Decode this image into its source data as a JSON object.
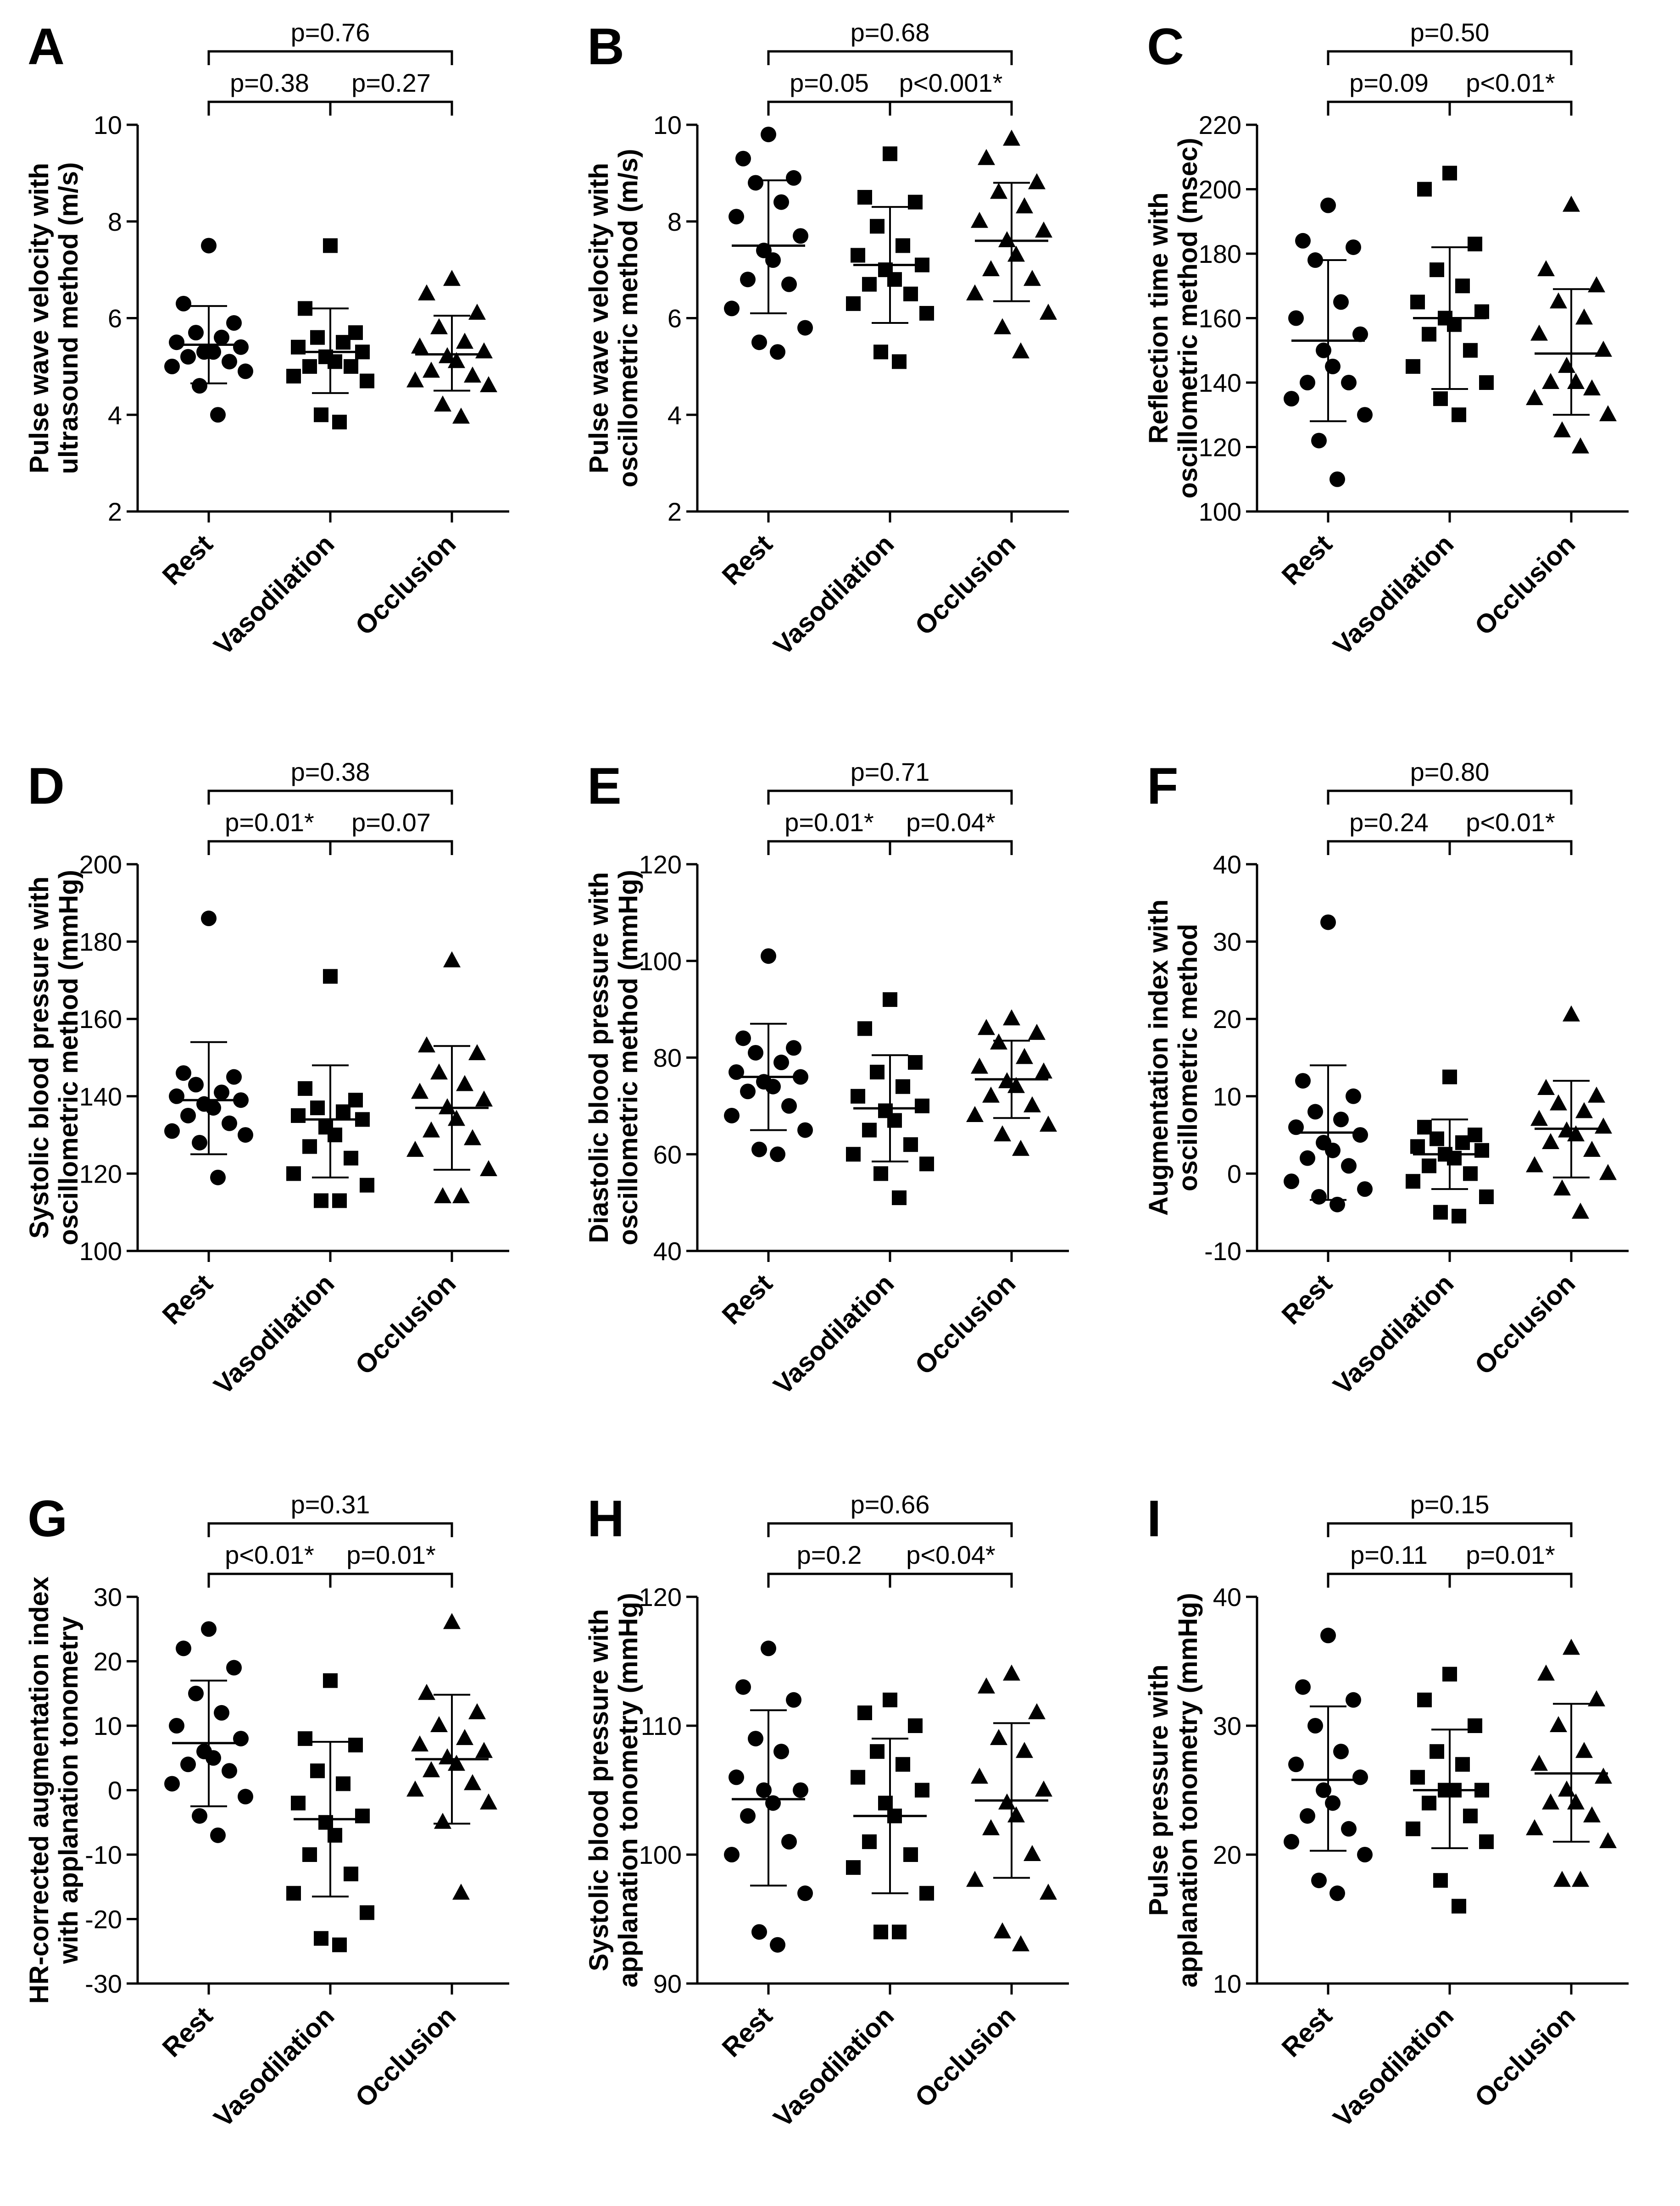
{
  "chart_data": [
    {
      "panel": "A",
      "type": "scatter",
      "ylabel_lines": [
        "Pulse wave velocity with",
        "ultrasound method (m/s)"
      ],
      "categories": [
        "Rest",
        "Vasodilation",
        "Occlusion"
      ],
      "ylim": [
        2,
        10
      ],
      "yticks": [
        2,
        4,
        6,
        8,
        10
      ],
      "markers": [
        "circle",
        "square",
        "triangle"
      ],
      "series": [
        {
          "name": "Rest",
          "values": [
            7.5,
            6.3,
            5.9,
            5.7,
            5.6,
            5.5,
            5.4,
            5.3,
            5.3,
            5.2,
            5.1,
            5.0,
            4.9,
            4.6,
            4.0
          ],
          "mean": 5.45,
          "sd_low": 4.65,
          "sd_high": 6.25
        },
        {
          "name": "Vasodilation",
          "values": [
            7.5,
            6.2,
            5.7,
            5.6,
            5.5,
            5.4,
            5.3,
            5.2,
            5.1,
            5.0,
            5.0,
            4.8,
            4.7,
            4.0,
            3.85
          ],
          "mean": 5.3,
          "sd_low": 4.45,
          "sd_high": 6.2
        },
        {
          "name": "Occlusion",
          "values": [
            6.8,
            6.5,
            6.1,
            5.8,
            5.5,
            5.4,
            5.3,
            5.2,
            5.1,
            4.9,
            4.8,
            4.7,
            4.6,
            4.2,
            3.95
          ],
          "mean": 5.25,
          "sd_low": 4.5,
          "sd_high": 6.05
        }
      ],
      "comparisons": {
        "top": "p=0.76",
        "left": "p=0.38",
        "right": "p=0.27"
      }
    },
    {
      "panel": "B",
      "type": "scatter",
      "ylabel_lines": [
        "Pulse wave velocity with",
        "oscillometric method (m/s)"
      ],
      "categories": [
        "Rest",
        "Vasodilation",
        "Occlusion"
      ],
      "ylim": [
        2,
        10
      ],
      "yticks": [
        2,
        4,
        6,
        8,
        10
      ],
      "markers": [
        "circle",
        "square",
        "triangle"
      ],
      "series": [
        {
          "name": "Rest",
          "values": [
            9.8,
            9.3,
            8.9,
            8.8,
            8.4,
            8.1,
            7.7,
            7.4,
            7.2,
            6.8,
            6.7,
            6.2,
            5.8,
            5.5,
            5.3
          ],
          "mean": 7.5,
          "sd_low": 6.1,
          "sd_high": 8.85
        },
        {
          "name": "Vasodilation",
          "values": [
            9.4,
            8.5,
            8.4,
            7.9,
            7.5,
            7.3,
            7.1,
            7.0,
            6.8,
            6.7,
            6.5,
            6.3,
            6.1,
            5.3,
            5.1
          ],
          "mean": 7.1,
          "sd_low": 5.9,
          "sd_high": 8.3
        },
        {
          "name": "Occlusion",
          "values": [
            9.7,
            9.3,
            8.8,
            8.6,
            8.3,
            8.0,
            7.8,
            7.6,
            7.3,
            7.0,
            6.8,
            6.5,
            6.1,
            5.8,
            5.3
          ],
          "mean": 7.6,
          "sd_low": 6.35,
          "sd_high": 8.8
        }
      ],
      "comparisons": {
        "top": "p=0.68",
        "left": "p=0.05",
        "right": "p<0.001*"
      }
    },
    {
      "panel": "C",
      "type": "scatter",
      "ylabel_lines": [
        "Reflection time with",
        "oscillometric method (msec)"
      ],
      "categories": [
        "Rest",
        "Vasodilation",
        "Occlusion"
      ],
      "ylim": [
        100,
        220
      ],
      "yticks": [
        100,
        120,
        140,
        160,
        180,
        200,
        220
      ],
      "markers": [
        "circle",
        "square",
        "triangle"
      ],
      "series": [
        {
          "name": "Rest",
          "values": [
            195,
            184,
            182,
            178,
            165,
            160,
            155,
            150,
            145,
            140,
            140,
            135,
            130,
            122,
            110
          ],
          "mean": 153,
          "sd_low": 128,
          "sd_high": 178
        },
        {
          "name": "Vasodilation",
          "values": [
            205,
            200,
            183,
            175,
            170,
            165,
            162,
            160,
            158,
            155,
            150,
            145,
            140,
            135,
            130
          ],
          "mean": 160,
          "sd_low": 138,
          "sd_high": 182
        },
        {
          "name": "Occlusion",
          "values": [
            195,
            175,
            170,
            165,
            160,
            155,
            150,
            145,
            140,
            140,
            138,
            135,
            130,
            125,
            120
          ],
          "mean": 149,
          "sd_low": 130,
          "sd_high": 169
        }
      ],
      "comparisons": {
        "top": "p=0.50",
        "left": "p=0.09",
        "right": "p<0.01*"
      }
    },
    {
      "panel": "D",
      "type": "scatter",
      "ylabel_lines": [
        "Systolic blood pressure with",
        "oscillometric method (mmHg)"
      ],
      "categories": [
        "Rest",
        "Vasodilation",
        "Occlusion"
      ],
      "ylim": [
        100,
        200
      ],
      "yticks": [
        100,
        120,
        140,
        160,
        180,
        200
      ],
      "markers": [
        "circle",
        "square",
        "triangle"
      ],
      "series": [
        {
          "name": "Rest",
          "values": [
            186,
            146,
            145,
            143,
            141,
            140,
            139,
            138,
            137,
            135,
            133,
            131,
            130,
            128,
            119
          ],
          "mean": 139,
          "sd_low": 125,
          "sd_high": 154
        },
        {
          "name": "Vasodilation",
          "values": [
            171,
            142,
            139,
            137,
            136,
            135,
            134,
            132,
            130,
            127,
            124,
            120,
            117,
            113,
            113
          ],
          "mean": 134,
          "sd_low": 119,
          "sd_high": 148
        },
        {
          "name": "Occlusion",
          "values": [
            175,
            153,
            151,
            146,
            143,
            141,
            139,
            137,
            134,
            131,
            129,
            126,
            121,
            114,
            114
          ],
          "mean": 137,
          "sd_low": 121,
          "sd_high": 153
        }
      ],
      "comparisons": {
        "top": "p=0.38",
        "left": "p=0.01*",
        "right": "p=0.07"
      }
    },
    {
      "panel": "E",
      "type": "scatter",
      "ylabel_lines": [
        "Diastolic blood pressure with",
        "oscillometric method (mmHg)"
      ],
      "categories": [
        "Rest",
        "Vasodilation",
        "Occlusion"
      ],
      "ylim": [
        40,
        120
      ],
      "yticks": [
        40,
        60,
        80,
        100,
        120
      ],
      "markers": [
        "circle",
        "square",
        "triangle"
      ],
      "series": [
        {
          "name": "Rest",
          "values": [
            101,
            84,
            82,
            81,
            79,
            77,
            76,
            75,
            74,
            73,
            70,
            68,
            65,
            61,
            60
          ],
          "mean": 76,
          "sd_low": 65,
          "sd_high": 87
        },
        {
          "name": "Vasodilation",
          "values": [
            92,
            86,
            79,
            77,
            74,
            72,
            70,
            69,
            67,
            65,
            62,
            60,
            58,
            56,
            51
          ],
          "mean": 69.5,
          "sd_low": 58.5,
          "sd_high": 80.5
        },
        {
          "name": "Occlusion",
          "values": [
            88,
            86,
            85,
            83,
            80,
            78,
            77,
            75,
            74,
            72,
            70,
            68,
            66,
            64,
            61
          ],
          "mean": 75.5,
          "sd_low": 67.5,
          "sd_high": 83.5
        }
      ],
      "comparisons": {
        "top": "p=0.71",
        "left": "p=0.01*",
        "right": "p=0.04*"
      }
    },
    {
      "panel": "F",
      "type": "scatter",
      "ylabel_lines": [
        "Augmentation index with",
        "oscillometric method"
      ],
      "categories": [
        "Rest",
        "Vasodilation",
        "Occlusion"
      ],
      "ylim": [
        -10,
        40
      ],
      "yticks": [
        -10,
        0,
        10,
        20,
        30,
        40
      ],
      "markers": [
        "circle",
        "square",
        "triangle"
      ],
      "series": [
        {
          "name": "Rest",
          "values": [
            32.5,
            12,
            10,
            8,
            7,
            6,
            5,
            4,
            3,
            2,
            1,
            -1,
            -2,
            -3,
            -4
          ],
          "mean": 5.3,
          "sd_low": -3.4,
          "sd_high": 14
        },
        {
          "name": "Vasodilation",
          "values": [
            12.5,
            6,
            5,
            4.5,
            4,
            3.5,
            3,
            2.5,
            2,
            1,
            0,
            -1,
            -3,
            -5,
            -5.5
          ],
          "mean": 2.5,
          "sd_low": -2,
          "sd_high": 7
        },
        {
          "name": "Occlusion",
          "values": [
            20.5,
            11,
            10,
            9,
            8,
            7,
            6,
            5.5,
            5,
            4,
            3,
            1,
            0,
            -2,
            -5
          ],
          "mean": 5.8,
          "sd_low": -0.5,
          "sd_high": 12
        }
      ],
      "comparisons": {
        "top": "p=0.80",
        "left": "p=0.24",
        "right": "p<0.01*"
      }
    },
    {
      "panel": "G",
      "type": "scatter",
      "ylabel_lines": [
        "HR-corrected augmentation index",
        "with applanation tonometry"
      ],
      "categories": [
        "Rest",
        "Vasodilation",
        "Occlusion"
      ],
      "ylim": [
        -30,
        30
      ],
      "yticks": [
        -30,
        -20,
        -10,
        0,
        10,
        20,
        30
      ],
      "markers": [
        "circle",
        "square",
        "triangle"
      ],
      "series": [
        {
          "name": "Rest",
          "values": [
            25,
            22,
            19,
            15,
            12,
            10,
            8,
            6,
            5,
            4,
            3,
            1,
            -1,
            -4,
            -7
          ],
          "mean": 7.3,
          "sd_low": -2.5,
          "sd_high": 17
        },
        {
          "name": "Vasodilation",
          "values": [
            17,
            8,
            7,
            3,
            1,
            -2,
            -4,
            -5,
            -7,
            -10,
            -13,
            -16,
            -19,
            -23,
            -24
          ],
          "mean": -4.5,
          "sd_low": -16.5,
          "sd_high": 7.5
        },
        {
          "name": "Occlusion",
          "values": [
            26,
            15,
            12,
            10,
            8,
            7,
            6,
            5,
            4,
            3,
            1,
            0,
            -2,
            -5,
            -16
          ],
          "mean": 4.8,
          "sd_low": -5.2,
          "sd_high": 14.8
        }
      ],
      "comparisons": {
        "top": "p=0.31",
        "left": "p<0.01*",
        "right": "p=0.01*"
      }
    },
    {
      "panel": "H",
      "type": "scatter",
      "ylabel_lines": [
        "Systolic blood pressure with",
        "applanation tonometry (mmHg)"
      ],
      "categories": [
        "Rest",
        "Vasodilation",
        "Occlusion"
      ],
      "ylim": [
        90,
        120
      ],
      "yticks": [
        90,
        100,
        110,
        120
      ],
      "markers": [
        "circle",
        "square",
        "triangle"
      ],
      "series": [
        {
          "name": "Rest",
          "values": [
            116,
            113,
            112,
            109,
            108,
            106,
            105,
            105,
            104,
            103,
            101,
            100,
            97,
            94,
            93
          ],
          "mean": 104.3,
          "sd_low": 97.6,
          "sd_high": 111.2
        },
        {
          "name": "Vasodilation",
          "values": [
            112,
            111,
            110,
            108,
            107,
            106,
            105,
            104,
            103,
            101,
            100,
            99,
            97,
            94,
            94
          ],
          "mean": 103,
          "sd_low": 97,
          "sd_high": 109
        },
        {
          "name": "Occlusion",
          "values": [
            114,
            113,
            111,
            109,
            108,
            106,
            105,
            104,
            103,
            102,
            100,
            98,
            97,
            94,
            93
          ],
          "mean": 104.2,
          "sd_low": 98.2,
          "sd_high": 110.2
        }
      ],
      "comparisons": {
        "top": "p=0.66",
        "left": "p=0.2",
        "right": "p<0.04*"
      }
    },
    {
      "panel": "I",
      "type": "scatter",
      "ylabel_lines": [
        "Pulse pressure with",
        "applanation tonometry (mmHg)"
      ],
      "categories": [
        "Rest",
        "Vasodilation",
        "Occlusion"
      ],
      "ylim": [
        10,
        40
      ],
      "yticks": [
        10,
        20,
        30,
        40
      ],
      "markers": [
        "circle",
        "square",
        "triangle"
      ],
      "series": [
        {
          "name": "Rest",
          "values": [
            37,
            33,
            32,
            30,
            28,
            27,
            26,
            25,
            24,
            23,
            22,
            21,
            20,
            18,
            17
          ],
          "mean": 25.8,
          "sd_low": 20.3,
          "sd_high": 31.5
        },
        {
          "name": "Vasodilation",
          "values": [
            34,
            32,
            30,
            28,
            27,
            26,
            25,
            25,
            25,
            24,
            23,
            22,
            21,
            18,
            16
          ],
          "mean": 25,
          "sd_low": 20.5,
          "sd_high": 29.7
        },
        {
          "name": "Occlusion",
          "values": [
            36,
            34,
            32,
            30,
            28,
            27,
            26,
            25,
            24,
            24,
            23,
            22,
            21,
            18,
            18
          ],
          "mean": 26.3,
          "sd_low": 21,
          "sd_high": 31.7
        }
      ],
      "comparisons": {
        "top": "p=0.15",
        "left": "p=0.11",
        "right": "p=0.01*"
      }
    }
  ]
}
